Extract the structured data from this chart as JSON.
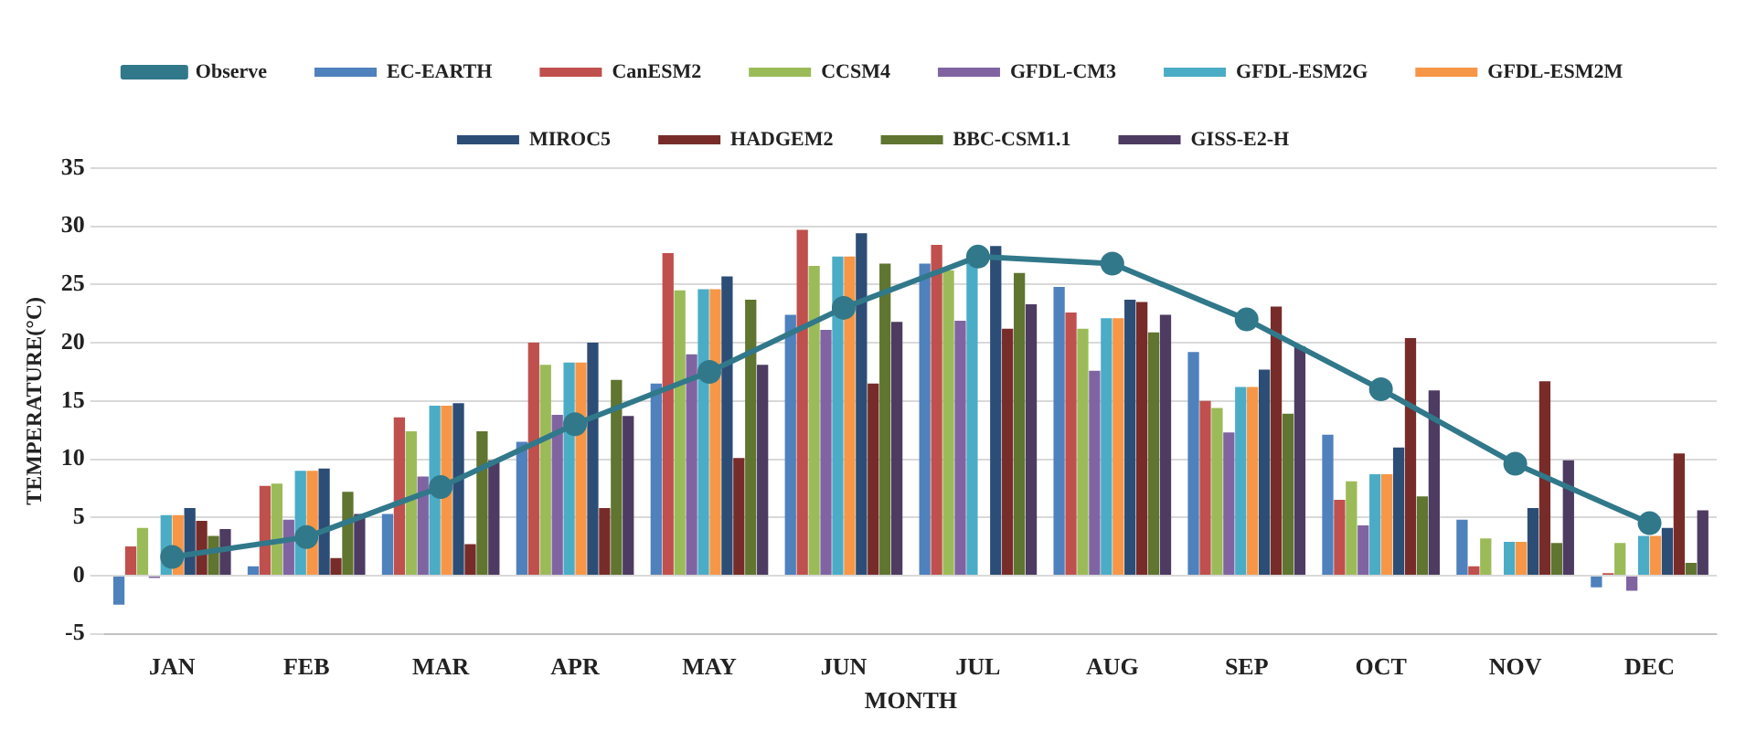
{
  "chart_data": {
    "type": "bar",
    "xlabel": "MONTH",
    "ylabel": "TEMPERATURE(°C)",
    "categories": [
      "JAN",
      "FEB",
      "MAR",
      "APR",
      "MAY",
      "JUN",
      "JUL",
      "AUG",
      "SEP",
      "OCT",
      "NOV",
      "DEC"
    ],
    "series": [
      {
        "name": "EC-EARTH",
        "color": "#4f81bd",
        "values": [
          -2.5,
          0.8,
          5.3,
          11.5,
          16.5,
          22.4,
          26.8,
          24.8,
          19.2,
          12.1,
          4.8,
          -1.0
        ]
      },
      {
        "name": "CanESM2",
        "color": "#c0504d",
        "values": [
          2.5,
          7.7,
          13.6,
          20.0,
          27.7,
          29.7,
          28.4,
          22.6,
          15.0,
          6.5,
          0.8,
          0.2
        ]
      },
      {
        "name": "CCSM4",
        "color": "#9bbb59",
        "values": [
          4.1,
          7.9,
          12.4,
          18.1,
          24.5,
          26.6,
          26.2,
          21.2,
          14.4,
          8.1,
          3.2,
          2.8
        ]
      },
      {
        "name": "GFDL-CM3",
        "color": "#8064a2",
        "values": [
          -0.2,
          4.8,
          8.5,
          13.8,
          19.0,
          21.1,
          21.9,
          17.6,
          12.3,
          4.3,
          0.0,
          -1.3
        ]
      },
      {
        "name": "GFDL-ESM2G",
        "color": "#4bacc6",
        "values": [
          5.2,
          9.0,
          14.6,
          18.3,
          24.6,
          27.4,
          27.3,
          22.1,
          16.2,
          8.7,
          2.9,
          3.4
        ]
      },
      {
        "name": "GFDL-ESM2M",
        "color": "#f79646",
        "values": [
          5.2,
          9.0,
          14.6,
          18.3,
          24.6,
          27.4,
          null,
          22.1,
          16.2,
          8.7,
          2.9,
          3.4
        ]
      },
      {
        "name": "MIROC5",
        "color": "#2c4d75",
        "values": [
          5.8,
          9.2,
          14.8,
          20.0,
          25.7,
          29.4,
          28.3,
          23.7,
          17.7,
          11.0,
          5.8,
          4.1
        ]
      },
      {
        "name": "HADGEM2",
        "color": "#772c2a",
        "values": [
          4.7,
          1.5,
          2.7,
          5.8,
          10.1,
          16.5,
          21.2,
          23.5,
          23.1,
          20.4,
          16.7,
          10.5
        ]
      },
      {
        "name": "BBC-CSM1.1",
        "color": "#5f7530",
        "values": [
          3.4,
          7.2,
          12.4,
          16.8,
          23.7,
          26.8,
          26.0,
          20.9,
          13.9,
          6.8,
          2.8,
          1.1
        ]
      },
      {
        "name": "GISS-E2-H",
        "color": "#4d3b62",
        "values": [
          4.0,
          5.3,
          9.9,
          13.7,
          18.1,
          21.8,
          23.3,
          22.4,
          19.7,
          15.9,
          9.9,
          5.6
        ]
      },
      {
        "name": "Observe",
        "type": "line",
        "color": "#31788a",
        "marker": "circle",
        "values": [
          1.6,
          3.3,
          7.6,
          13.0,
          17.5,
          23.0,
          27.4,
          26.8,
          22.0,
          16.0,
          9.6,
          4.5
        ]
      }
    ],
    "ylim": [
      -5,
      35
    ],
    "yticks": [
      -5,
      0,
      5,
      10,
      15,
      20,
      25,
      30,
      35
    ],
    "grid": "y",
    "legend": "top"
  }
}
